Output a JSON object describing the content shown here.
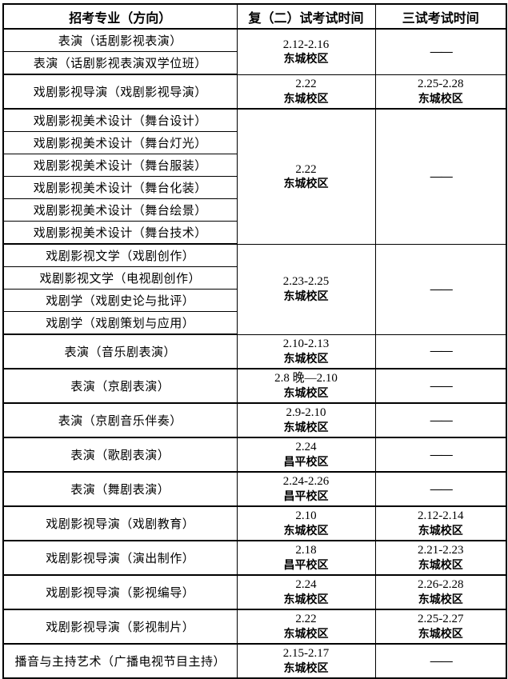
{
  "table": {
    "dash": "——",
    "headers": [
      "招考专业（方向）",
      "复（二）试考试时间",
      "三试考试时间"
    ],
    "groups": [
      {
        "majors": [
          "表演（话剧影视表演）",
          "表演（话剧影视表演双学位班）"
        ],
        "round2": {
          "date": "2.12-2.16",
          "campus": "东城校区"
        },
        "round3": {
          "dash": true
        }
      },
      {
        "majors": [
          "戏剧影视导演（戏剧影视导演）"
        ],
        "round2": {
          "date": "2.22",
          "campus": "东城校区"
        },
        "round3": {
          "date": "2.25-2.28",
          "campus": "东城校区"
        }
      },
      {
        "majors": [
          "戏剧影视美术设计（舞台设计）",
          "戏剧影视美术设计（舞台灯光）",
          "戏剧影视美术设计（舞台服装）",
          "戏剧影视美术设计（舞台化装）",
          "戏剧影视美术设计（舞台绘景）",
          "戏剧影视美术设计（舞台技术）"
        ],
        "round2": {
          "date": "2.22",
          "campus": "东城校区"
        },
        "round3": {
          "dash": true
        }
      },
      {
        "majors": [
          "戏剧影视文学（戏剧创作）",
          "戏剧影视文学（电视剧创作）",
          "戏剧学（戏剧史论与批评）",
          "戏剧学（戏剧策划与应用）"
        ],
        "round2": {
          "date": "2.23-2.25",
          "campus": "东城校区"
        },
        "round3": {
          "dash": true
        }
      },
      {
        "majors": [
          "表演（音乐剧表演）"
        ],
        "round2": {
          "date": "2.10-2.13",
          "campus": "东城校区"
        },
        "round3": {
          "dash": true
        }
      },
      {
        "majors": [
          "表演（京剧表演）"
        ],
        "round2": {
          "date": "2.8 晚—2.10",
          "campus": "东城校区"
        },
        "round3": {
          "dash": true
        }
      },
      {
        "majors": [
          "表演（京剧音乐伴奏）"
        ],
        "round2": {
          "date": "2.9-2.10",
          "campus": "东城校区"
        },
        "round3": {
          "dash": true
        }
      },
      {
        "majors": [
          "表演（歌剧表演）"
        ],
        "round2": {
          "date": "2.24",
          "campus": "昌平校区"
        },
        "round3": {
          "dash": true
        }
      },
      {
        "majors": [
          "表演（舞剧表演）"
        ],
        "round2": {
          "date": "2.24-2.26",
          "campus": "昌平校区"
        },
        "round3": {
          "dash": true
        }
      },
      {
        "majors": [
          "戏剧影视导演（戏剧教育）"
        ],
        "round2": {
          "date": "2.10",
          "campus": "东城校区"
        },
        "round3": {
          "date": "2.12-2.14",
          "campus": "东城校区"
        }
      },
      {
        "majors": [
          "戏剧影视导演（演出制作）"
        ],
        "round2": {
          "date": "2.18",
          "campus": "昌平校区"
        },
        "round3": {
          "date": "2.21-2.23",
          "campus": "东城校区"
        }
      },
      {
        "majors": [
          "戏剧影视导演（影视编导）"
        ],
        "round2": {
          "date": "2.24",
          "campus": "东城校区"
        },
        "round3": {
          "date": "2.26-2.28",
          "campus": "东城校区"
        }
      },
      {
        "majors": [
          "戏剧影视导演（影视制片）"
        ],
        "round2": {
          "date": "2.22",
          "campus": "东城校区"
        },
        "round3": {
          "date": "2.25-2.27",
          "campus": "东城校区"
        }
      },
      {
        "majors": [
          "播音与主持艺术（广播电视节目主持）"
        ],
        "round2": {
          "date": "2.15-2.17",
          "campus": "东城校区"
        },
        "round3": {
          "dash": true
        }
      }
    ]
  }
}
